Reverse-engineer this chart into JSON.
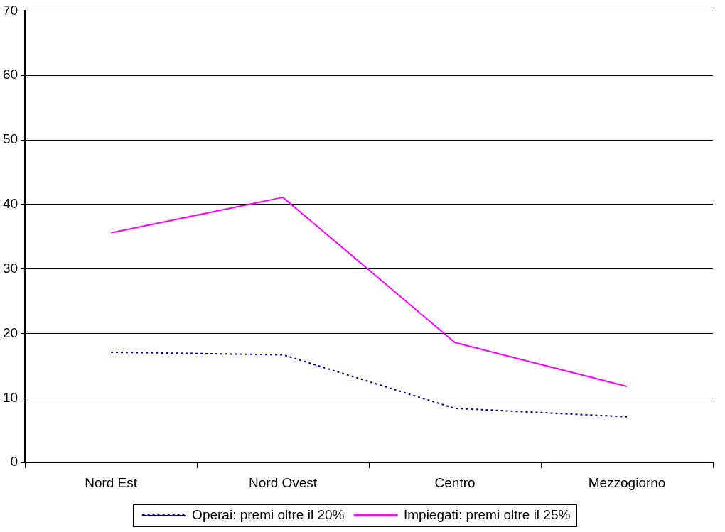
{
  "chart_data": {
    "type": "line",
    "categories": [
      "Nord Est",
      "Nord Ovest",
      "Centro",
      "Mezzogiorno"
    ],
    "series": [
      {
        "name": "Operai: premi oltre il 20%",
        "color": "#000080",
        "values": [
          17.1,
          16.7,
          8.4,
          7.1
        ],
        "line_style": "dotted"
      },
      {
        "name": "Impiegati: premi oltre il 25%",
        "color": "#ff00ff",
        "values": [
          35.6,
          41.1,
          18.6,
          11.8
        ],
        "line_style": "solid"
      }
    ],
    "ylim": [
      0,
      70
    ],
    "yticks": [
      0,
      10,
      20,
      30,
      40,
      50,
      60,
      70
    ],
    "grid": "y",
    "legend": "bottom",
    "marker": "none"
  }
}
